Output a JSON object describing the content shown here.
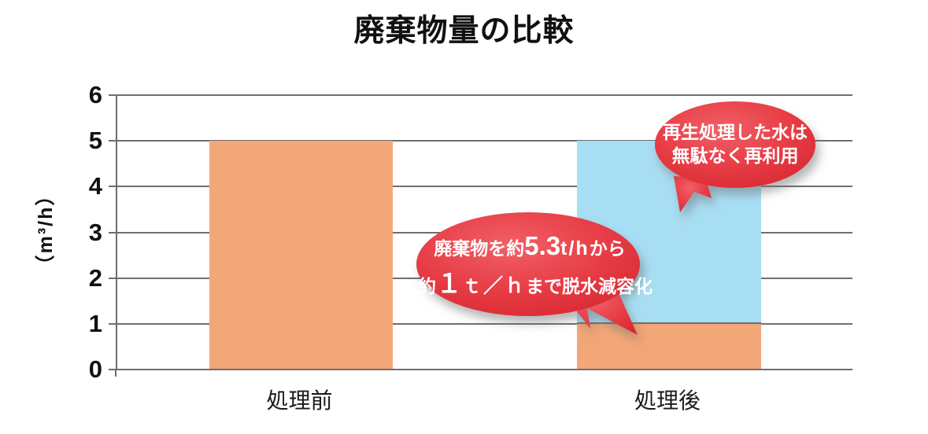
{
  "page": {
    "title": "廃棄物量の比較"
  },
  "chart_data": {
    "type": "bar",
    "stacked": true,
    "title": "廃棄物量の比較",
    "xlabel": "",
    "ylabel": "（m³/h）",
    "ylim": [
      0,
      6
    ],
    "ytick_step": 1,
    "grid": "horizontal",
    "legend": "none",
    "categories": [
      "処理前",
      "処理後"
    ],
    "category_keys": [
      "before",
      "after"
    ],
    "series": [
      {
        "key": "waste-orange",
        "color": "#f3a778",
        "values": [
          5,
          1
        ]
      },
      {
        "key": "recycled-water-blue",
        "color": "#a8def4",
        "values": [
          0,
          4
        ]
      }
    ]
  },
  "annotations": {
    "reuse_bubble": {
      "line1": "再生処理した水は",
      "line2": "無駄なく再利用"
    },
    "reduction_bubble": {
      "l1_pre": "廃棄物を約",
      "l1_big": "5.3",
      "l1_mid": "t/h",
      "l1_post": "から",
      "l2_pre": "約",
      "l2_big": "１",
      "l2_mid": "ｔ／ｈ",
      "l2_post": "まで脱水減容化"
    }
  },
  "colors": {
    "bar_orange": "#f3a778",
    "bar_blue": "#a8def4",
    "bubble_red": "#e73c45",
    "bubble_red_light": "#f16067",
    "bubble_red_dark": "#d62730",
    "gridline": "#6e6e6e",
    "text": "#111111"
  }
}
